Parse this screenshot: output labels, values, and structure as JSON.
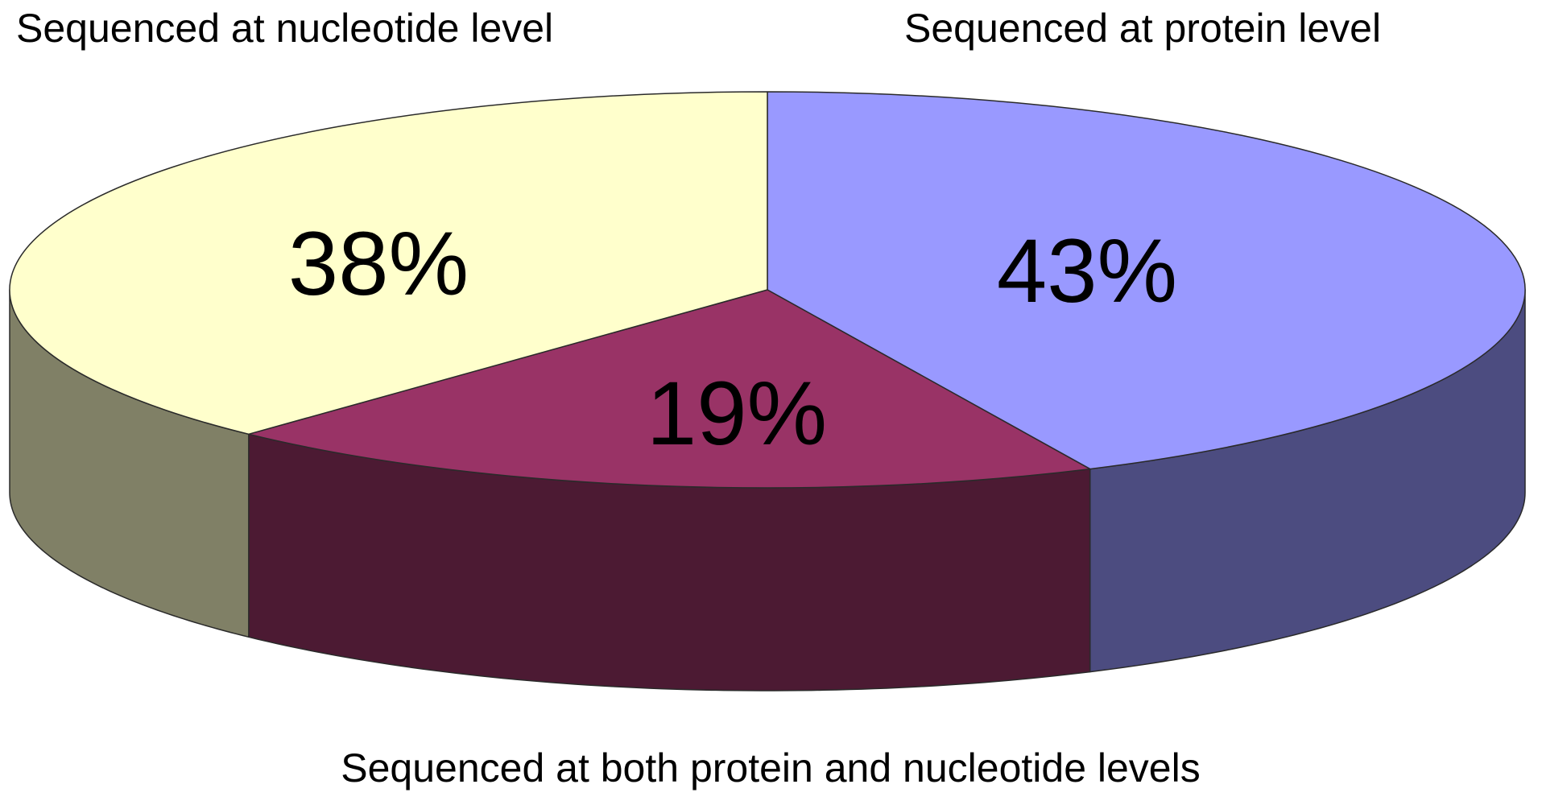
{
  "chart_data": {
    "type": "pie",
    "title": "",
    "slices": [
      {
        "key": "protein",
        "label": "Sequenced at protein level",
        "value": 43,
        "value_label": "43%",
        "color": "#9999ff",
        "side_color": "#4c4c80"
      },
      {
        "key": "both",
        "label": "Sequenced at both protein and nucleotide levels",
        "value": 19,
        "value_label": "19%",
        "color": "#993366",
        "side_color": "#4c1a33"
      },
      {
        "key": "nucleotide",
        "label": "Sequenced at nucleotide level",
        "value": 38,
        "value_label": "38%",
        "color": "#ffffcc",
        "side_color": "#808066"
      }
    ],
    "start_angle_deg": 90,
    "direction": "clockwise",
    "style": "3d",
    "legend": "none"
  }
}
